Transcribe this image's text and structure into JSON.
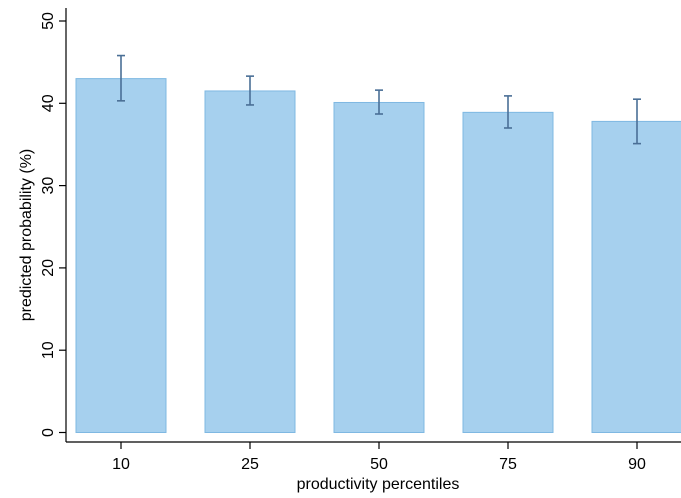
{
  "chart_data": {
    "type": "bar",
    "categories": [
      "10",
      "25",
      "50",
      "75",
      "90"
    ],
    "values": [
      43.0,
      41.5,
      40.1,
      38.9,
      37.8
    ],
    "error_low": [
      40.3,
      39.8,
      38.7,
      37.0,
      35.1
    ],
    "error_high": [
      45.8,
      43.3,
      41.6,
      40.9,
      40.5
    ],
    "ylim": [
      0,
      50
    ],
    "yticks": [
      0,
      10,
      20,
      30,
      40,
      50
    ],
    "title": "",
    "xlabel": "productivity percentiles",
    "ylabel": "predicted probability (%)",
    "grid": false,
    "legend": "none",
    "colors": {
      "bar_fill": "#a6d0ee",
      "bar_stroke": "#7fb8e2",
      "error_bar": "#4a6f96",
      "axis": "#000000"
    }
  }
}
